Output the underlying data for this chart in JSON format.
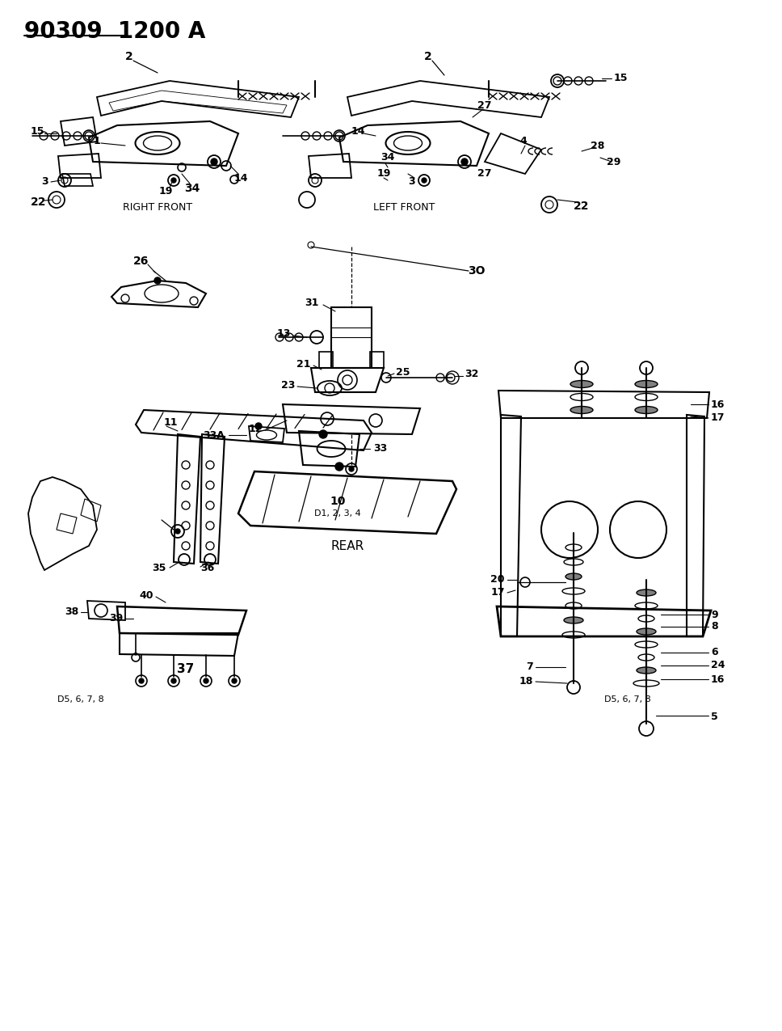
{
  "title": "90309  1200 A",
  "bg_color": "#ffffff",
  "figsize": [
    9.68,
    12.75
  ],
  "dpi": 100,
  "right_front_label": "RIGHT FRONT",
  "left_front_label": "LEFT FRONT",
  "rear_label": "REAR",
  "d5678_label": "D5, 6, 7, 8",
  "d1234_label": "D1, 2, 3, 4"
}
